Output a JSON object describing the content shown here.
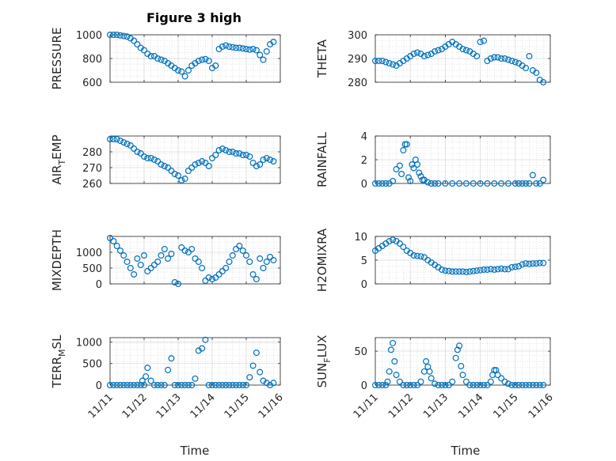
{
  "figure": {
    "title": "Figure 3 high",
    "xlabel_left": "Time",
    "xlabel_right": "Time",
    "marker_color": "#0072BD",
    "grid": true,
    "minor_grid": true
  },
  "chart_data": [
    {
      "type": "scatter",
      "ylabel": "PRESSURE",
      "ylim": [
        600,
        1000
      ],
      "yticks": [
        600,
        800,
        1000
      ],
      "xlim": [
        0,
        5
      ],
      "xticks": [
        "11/11",
        "11/12",
        "11/13",
        "11/14",
        "11/15",
        "11/16"
      ],
      "show_xticks": false,
      "x": [
        0.0,
        0.1,
        0.2,
        0.3,
        0.4,
        0.5,
        0.6,
        0.7,
        0.8,
        0.9,
        1.0,
        1.1,
        1.2,
        1.3,
        1.4,
        1.5,
        1.6,
        1.7,
        1.8,
        1.9,
        2.0,
        2.1,
        2.2,
        2.3,
        2.4,
        2.5,
        2.6,
        2.7,
        2.8,
        2.9,
        3.0,
        3.1,
        3.2,
        3.3,
        3.4,
        3.5,
        3.6,
        3.7,
        3.8,
        3.9,
        4.0,
        4.1,
        4.2,
        4.3,
        4.4,
        4.5,
        4.6,
        4.7,
        4.8
      ],
      "y": [
        1000,
        1000,
        1000,
        995,
        990,
        985,
        970,
        950,
        920,
        890,
        870,
        840,
        820,
        820,
        800,
        790,
        780,
        760,
        740,
        720,
        700,
        690,
        650,
        700,
        740,
        760,
        780,
        790,
        795,
        780,
        720,
        740,
        880,
        900,
        910,
        900,
        895,
        890,
        890,
        885,
        880,
        875,
        880,
        870,
        830,
        790,
        860,
        920,
        940
      ]
    },
    {
      "type": "scatter",
      "ylabel": "THETA",
      "ylim": [
        280,
        300
      ],
      "yticks": [
        280,
        290,
        300
      ],
      "xlim": [
        0,
        5
      ],
      "xticks": [
        "11/11",
        "11/12",
        "11/13",
        "11/14",
        "11/15",
        "11/16"
      ],
      "show_xticks": false,
      "x": [
        0.0,
        0.1,
        0.2,
        0.3,
        0.4,
        0.5,
        0.6,
        0.7,
        0.8,
        0.9,
        1.0,
        1.1,
        1.2,
        1.3,
        1.4,
        1.5,
        1.6,
        1.7,
        1.8,
        1.9,
        2.0,
        2.1,
        2.2,
        2.3,
        2.4,
        2.5,
        2.6,
        2.7,
        2.8,
        2.9,
        3.0,
        3.1,
        3.2,
        3.3,
        3.4,
        3.5,
        3.6,
        3.7,
        3.8,
        3.9,
        4.0,
        4.1,
        4.2,
        4.3,
        4.4,
        4.5,
        4.6,
        4.7,
        4.8
      ],
      "y": [
        289,
        289,
        289,
        288.5,
        288,
        287.5,
        287,
        288,
        289,
        290,
        291,
        292,
        292.5,
        292,
        291,
        291.5,
        292,
        293,
        293.5,
        294,
        295,
        296,
        297,
        296,
        295,
        294,
        293.5,
        293,
        292,
        291,
        297,
        297.5,
        289,
        290,
        290.5,
        290.5,
        290,
        290,
        289.5,
        289,
        288.5,
        288,
        287,
        286,
        291,
        285,
        284,
        281,
        280
      ]
    },
    {
      "type": "scatter",
      "ylabel": "AIR_TEMP",
      "ylim": [
        260,
        290
      ],
      "yticks": [
        260,
        270,
        280
      ],
      "xlim": [
        0,
        5
      ],
      "xticks": [
        "11/11",
        "11/12",
        "11/13",
        "11/14",
        "11/15",
        "11/16"
      ],
      "show_xticks": false,
      "x": [
        0.0,
        0.1,
        0.2,
        0.3,
        0.4,
        0.5,
        0.6,
        0.7,
        0.8,
        0.9,
        1.0,
        1.1,
        1.2,
        1.3,
        1.4,
        1.5,
        1.6,
        1.7,
        1.8,
        1.9,
        2.0,
        2.1,
        2.2,
        2.3,
        2.4,
        2.5,
        2.6,
        2.7,
        2.8,
        2.9,
        3.0,
        3.1,
        3.2,
        3.3,
        3.4,
        3.5,
        3.6,
        3.7,
        3.8,
        3.9,
        4.0,
        4.1,
        4.2,
        4.3,
        4.4,
        4.5,
        4.6,
        4.7,
        4.8
      ],
      "y": [
        288,
        288,
        288,
        287,
        286,
        285,
        284,
        282,
        280,
        279,
        277,
        276,
        276,
        275,
        274,
        272,
        271,
        270,
        268,
        266,
        265,
        262,
        263,
        268,
        270,
        272,
        273,
        274,
        273,
        271,
        276,
        278,
        281,
        282,
        281,
        280,
        280,
        279,
        279,
        278,
        278,
        277,
        273,
        271,
        272,
        275,
        276,
        275,
        274
      ]
    },
    {
      "type": "scatter",
      "ylabel": "RAINFALL",
      "ylim": [
        0,
        4
      ],
      "yticks": [
        0,
        2,
        4
      ],
      "xlim": [
        0,
        5
      ],
      "xticks": [
        "11/11",
        "11/12",
        "11/13",
        "11/14",
        "11/15",
        "11/16"
      ],
      "show_xticks": false,
      "x": [
        0.0,
        0.1,
        0.2,
        0.3,
        0.4,
        0.5,
        0.6,
        0.7,
        0.75,
        0.8,
        0.85,
        0.9,
        0.95,
        1.0,
        1.05,
        1.1,
        1.15,
        1.2,
        1.25,
        1.3,
        1.35,
        1.4,
        1.5,
        1.6,
        1.7,
        1.8,
        2.0,
        2.2,
        2.4,
        2.6,
        2.8,
        3.0,
        3.2,
        3.4,
        3.6,
        3.8,
        4.0,
        4.1,
        4.2,
        4.3,
        4.4,
        4.5,
        4.6,
        4.7,
        4.8
      ],
      "y": [
        0,
        0,
        0,
        0,
        0,
        0.2,
        1.2,
        1.5,
        0.8,
        2.8,
        3.3,
        3.3,
        0.5,
        0.2,
        1.6,
        1.3,
        2.0,
        1.6,
        0.9,
        0.6,
        0.3,
        0.3,
        0.1,
        0,
        0,
        0,
        0,
        0,
        0,
        0,
        0,
        0,
        0,
        0,
        0,
        0,
        0,
        0,
        0,
        0,
        0,
        0.7,
        0,
        0,
        0.3
      ]
    },
    {
      "type": "scatter",
      "ylabel": "MIXDEPTH",
      "ylim": [
        0,
        1500
      ],
      "yticks": [
        0,
        500,
        1000
      ],
      "xlim": [
        0,
        5
      ],
      "xticks": [
        "11/11",
        "11/12",
        "11/13",
        "11/14",
        "11/15",
        "11/16"
      ],
      "show_xticks": false,
      "x": [
        0.0,
        0.1,
        0.2,
        0.3,
        0.4,
        0.5,
        0.6,
        0.7,
        0.8,
        0.9,
        1.0,
        1.1,
        1.2,
        1.3,
        1.4,
        1.5,
        1.6,
        1.7,
        1.8,
        1.9,
        2.0,
        2.1,
        2.2,
        2.3,
        2.4,
        2.5,
        2.6,
        2.7,
        2.8,
        2.9,
        3.0,
        3.1,
        3.2,
        3.3,
        3.4,
        3.5,
        3.6,
        3.7,
        3.8,
        3.9,
        4.0,
        4.1,
        4.2,
        4.3,
        4.4,
        4.5,
        4.6,
        4.7,
        4.8
      ],
      "y": [
        1450,
        1350,
        1200,
        1050,
        900,
        700,
        500,
        300,
        800,
        600,
        900,
        400,
        500,
        600,
        700,
        900,
        1100,
        800,
        950,
        50,
        0,
        1150,
        1050,
        1000,
        1100,
        800,
        700,
        500,
        100,
        200,
        150,
        200,
        300,
        400,
        500,
        700,
        900,
        1100,
        1200,
        1050,
        900,
        700,
        300,
        150,
        800,
        500,
        700,
        850,
        750
      ]
    },
    {
      "type": "scatter",
      "ylabel": "H2OMIXRA",
      "ylim": [
        0,
        10
      ],
      "yticks": [
        0,
        5,
        10
      ],
      "xlim": [
        0,
        5
      ],
      "xticks": [
        "11/11",
        "11/12",
        "11/13",
        "11/14",
        "11/15",
        "11/16"
      ],
      "show_xticks": false,
      "x": [
        0.0,
        0.1,
        0.2,
        0.3,
        0.4,
        0.5,
        0.6,
        0.7,
        0.8,
        0.9,
        1.0,
        1.1,
        1.2,
        1.3,
        1.4,
        1.5,
        1.6,
        1.7,
        1.8,
        1.9,
        2.0,
        2.1,
        2.2,
        2.3,
        2.4,
        2.5,
        2.6,
        2.7,
        2.8,
        2.9,
        3.0,
        3.1,
        3.2,
        3.3,
        3.4,
        3.5,
        3.6,
        3.7,
        3.8,
        3.9,
        4.0,
        4.1,
        4.2,
        4.3,
        4.4,
        4.5,
        4.6,
        4.7,
        4.8
      ],
      "y": [
        7,
        7.5,
        8,
        8.5,
        9,
        9.3,
        9,
        8.5,
        7.8,
        7,
        6.5,
        6,
        5.9,
        5.8,
        5.6,
        5,
        4.5,
        4,
        3.5,
        3,
        2.8,
        2.7,
        2.6,
        2.6,
        2.6,
        2.6,
        2.5,
        2.6,
        2.7,
        2.8,
        2.9,
        3,
        3,
        3.1,
        3,
        3.1,
        3.2,
        3.1,
        3.1,
        3.5,
        3.6,
        3.7,
        4.1,
        4.3,
        4.2,
        4.3,
        4.3,
        4.4,
        4.4
      ]
    },
    {
      "type": "scatter",
      "ylabel": "TERR_MSL",
      "ylim": [
        0,
        1100
      ],
      "yticks": [
        0,
        500,
        1000
      ],
      "xlim": [
        0,
        5
      ],
      "xticks": [
        "11/11",
        "11/12",
        "11/13",
        "11/14",
        "11/15",
        "11/16"
      ],
      "show_xticks": true,
      "x": [
        0.0,
        0.1,
        0.2,
        0.3,
        0.4,
        0.5,
        0.6,
        0.7,
        0.8,
        0.9,
        0.95,
        1.0,
        1.05,
        1.1,
        1.2,
        1.3,
        1.4,
        1.5,
        1.6,
        1.7,
        1.8,
        1.9,
        2.0,
        2.1,
        2.2,
        2.3,
        2.4,
        2.5,
        2.6,
        2.7,
        2.8,
        2.9,
        3.0,
        3.1,
        3.2,
        3.3,
        3.4,
        3.5,
        3.6,
        3.7,
        3.8,
        3.9,
        4.0,
        4.1,
        4.2,
        4.3,
        4.4,
        4.5,
        4.6,
        4.7,
        4.8
      ],
      "y": [
        0,
        0,
        0,
        0,
        0,
        0,
        0,
        0,
        0,
        0,
        100,
        0,
        200,
        400,
        100,
        0,
        0,
        0,
        0,
        350,
        620,
        0,
        0,
        0,
        0,
        0,
        0,
        150,
        800,
        850,
        1050,
        0,
        0,
        0,
        0,
        0,
        0,
        0,
        0,
        0,
        0,
        0,
        0,
        180,
        450,
        750,
        300,
        100,
        50,
        0,
        50
      ]
    },
    {
      "type": "scatter",
      "ylabel": "SUN_FLUX",
      "ylim": [
        0,
        70
      ],
      "yticks": [
        0,
        50
      ],
      "xlim": [
        0,
        5
      ],
      "xticks": [
        "11/11",
        "11/12",
        "11/13",
        "11/14",
        "11/15",
        "11/16"
      ],
      "show_xticks": true,
      "x": [
        0.0,
        0.1,
        0.2,
        0.3,
        0.35,
        0.4,
        0.45,
        0.5,
        0.55,
        0.6,
        0.7,
        0.8,
        0.9,
        1.0,
        1.1,
        1.2,
        1.3,
        1.4,
        1.45,
        1.5,
        1.55,
        1.6,
        1.7,
        1.8,
        1.9,
        2.0,
        2.1,
        2.2,
        2.3,
        2.35,
        2.4,
        2.45,
        2.5,
        2.6,
        2.7,
        2.8,
        2.9,
        3.0,
        3.1,
        3.2,
        3.3,
        3.35,
        3.4,
        3.45,
        3.5,
        3.6,
        3.7,
        3.8,
        3.9,
        4.0,
        4.1,
        4.2,
        4.3,
        4.4,
        4.5,
        4.6,
        4.7,
        4.8
      ],
      "y": [
        0,
        0,
        0,
        0,
        5,
        20,
        52,
        62,
        35,
        15,
        5,
        0,
        0,
        0,
        0,
        0,
        5,
        20,
        35,
        27,
        20,
        10,
        2,
        0,
        0,
        0,
        0,
        5,
        40,
        52,
        58,
        28,
        15,
        5,
        0,
        0,
        0,
        0,
        0,
        0,
        5,
        15,
        22,
        22,
        15,
        10,
        5,
        2,
        0,
        0,
        0,
        0,
        0,
        0,
        0,
        0,
        0,
        0
      ]
    }
  ]
}
